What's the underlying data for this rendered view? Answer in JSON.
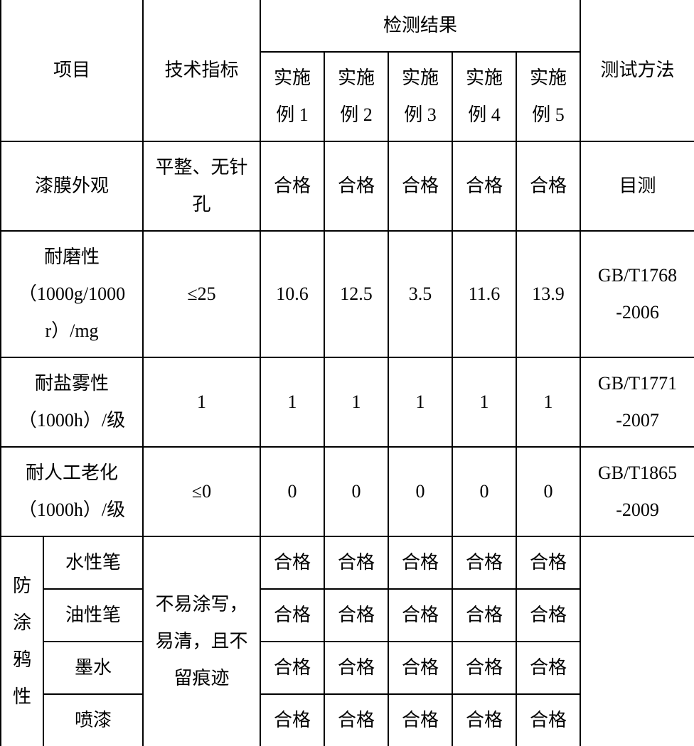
{
  "colors": {
    "border": "#000000",
    "background": "#ffffff",
    "text": "#000000"
  },
  "typography": {
    "font_family": "SimSun",
    "font_size_pt": 20,
    "line_height": 2.0
  },
  "table": {
    "header": {
      "project": "项目",
      "spec": "技术指标",
      "results_group": "检测结果",
      "method": "测试方法",
      "examples": [
        "实施\n例 1",
        "实施\n例 2",
        "实施\n例 3",
        "实施\n例 4",
        "实施\n例 5"
      ]
    },
    "rows": [
      {
        "project": "漆膜外观",
        "spec": "平整、无针\n孔",
        "vals": [
          "合格",
          "合格",
          "合格",
          "合格",
          "合格"
        ],
        "method": "目测"
      },
      {
        "project": "耐磨性\n（1000g/1000\nr）/mg",
        "spec": "≤25",
        "vals": [
          "10.6",
          "12.5",
          "3.5",
          "11.6",
          "13.9"
        ],
        "method": "GB/T1768\n-2006"
      },
      {
        "project": "耐盐雾性\n（1000h）/级",
        "spec": "1",
        "vals": [
          "1",
          "1",
          "1",
          "1",
          "1"
        ],
        "method": "GB/T1771\n-2007"
      },
      {
        "project": "耐人工老化\n（1000h）/级",
        "spec": "≤0",
        "vals": [
          "0",
          "0",
          "0",
          "0",
          "0"
        ],
        "method": "GB/T1865\n-2009"
      }
    ],
    "graffiti": {
      "group_label": "防\n涂\n鸦\n性",
      "spec": "不易涂写，\n易清，且不\n留痕迹",
      "subrows": [
        {
          "label": "水性笔",
          "vals": [
            "合格",
            "合格",
            "合格",
            "合格",
            "合格"
          ]
        },
        {
          "label": "油性笔",
          "vals": [
            "合格",
            "合格",
            "合格",
            "合格",
            "合格"
          ]
        },
        {
          "label": "墨水",
          "vals": [
            "合格",
            "合格",
            "合格",
            "合格",
            "合格"
          ]
        },
        {
          "label": "喷漆",
          "vals": [
            "合格",
            "合格",
            "合格",
            "合格",
            "合格"
          ]
        }
      ],
      "method": ""
    }
  }
}
